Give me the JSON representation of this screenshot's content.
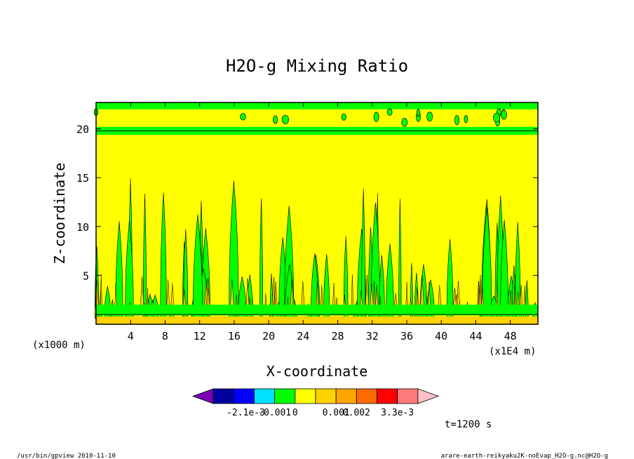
{
  "chart_data": {
    "type": "heatmap",
    "title": "H2O-g Mixing Ratio",
    "xlabel": "X-coordinate",
    "ylabel": "Z-coordinate",
    "x_unit_left": "(x1000 m)",
    "x_unit_right": "(x1E4 m)",
    "x_ticks": [
      "4",
      "8",
      "12",
      "16",
      "20",
      "24",
      "28",
      "32",
      "36",
      "40",
      "44",
      "48"
    ],
    "x_tick_values": [
      4,
      8,
      12,
      16,
      20,
      24,
      28,
      32,
      36,
      40,
      44,
      48
    ],
    "y_ticks": [
      "5",
      "10",
      "15",
      "20"
    ],
    "y_tick_values": [
      5,
      10,
      15,
      20
    ],
    "xlim": [
      0,
      51.2
    ],
    "ylim": [
      0,
      22.7
    ],
    "background_level_color": "#ffff00",
    "anomaly_level_color": "#00ff00",
    "colorbar": {
      "colors": [
        "#7b00b6",
        "#0000a0",
        "#0000ff",
        "#00e0ff",
        "#00ff00",
        "#ffff00",
        "#ffd200",
        "#ffa500",
        "#ff6a00",
        "#ff0000",
        "#ff7a7a",
        "#ffc0cb"
      ],
      "labels": [
        "-2.1e-3",
        "-0.001",
        "0",
        "0.001",
        "0.002",
        "3.3e-3"
      ]
    },
    "time_label": "t=1200 s"
  },
  "footer": {
    "left": "/usr/bin/gpview   2010-11-10",
    "right": "arare-earth-reikyaku2K-noEvap_H2O-g.nc@H2O-g"
  }
}
